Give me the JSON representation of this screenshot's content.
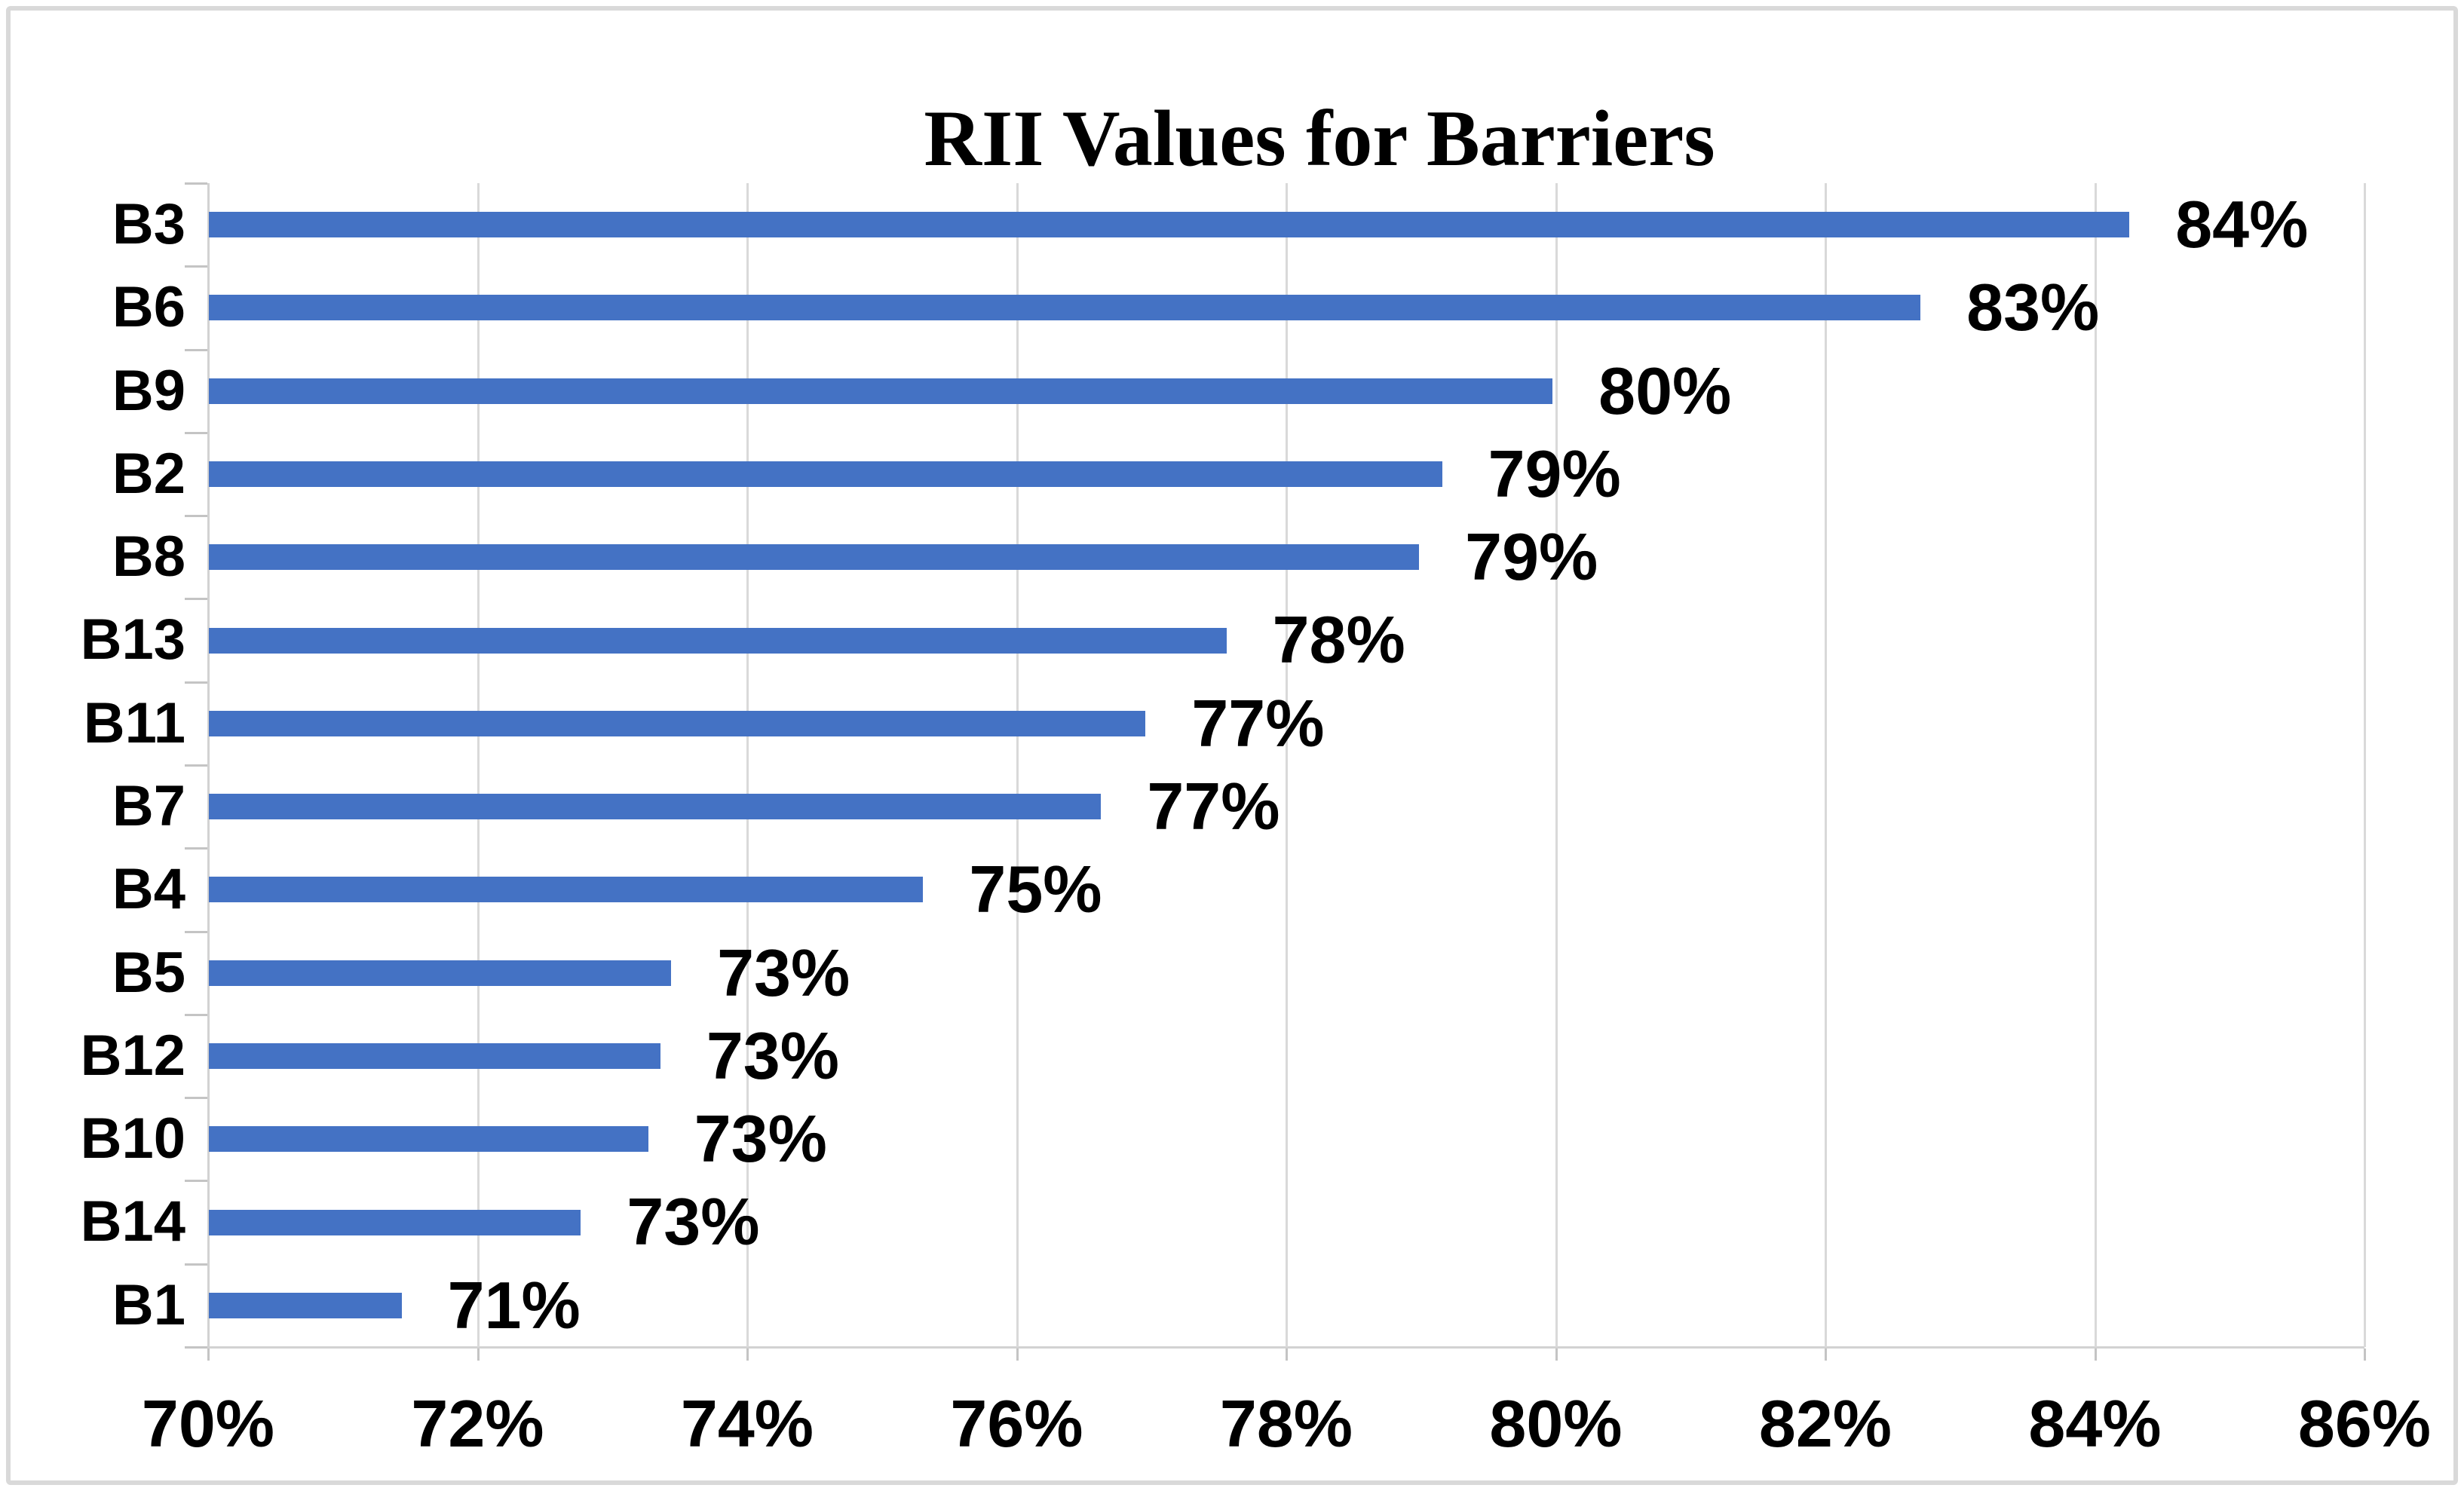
{
  "chart_data": {
    "type": "bar",
    "orientation": "horizontal",
    "title": "RII Values for Barriers",
    "categories": [
      "B3",
      "B6",
      "B9",
      "B2",
      "B8",
      "B13",
      "B11",
      "B7",
      "B4",
      "B5",
      "B12",
      "B10",
      "B14",
      "B1"
    ],
    "series": [
      {
        "name": "RII",
        "values_pct": [
          84.25,
          82.7,
          79.97,
          79.15,
          78.98,
          77.55,
          76.95,
          76.62,
          75.3,
          73.43,
          73.35,
          73.26,
          72.76,
          71.43
        ],
        "data_labels": [
          "84%",
          "83%",
          "80%",
          "79%",
          "79%",
          "78%",
          "77%",
          "77%",
          "75%",
          "73%",
          "73%",
          "73%",
          "73%",
          "71%"
        ]
      }
    ],
    "x_axis": {
      "min": 70,
      "max": 86,
      "tick_step": 2,
      "tick_labels": [
        "70%",
        "72%",
        "74%",
        "76%",
        "78%",
        "80%",
        "82%",
        "84%",
        "86%"
      ]
    },
    "y_axis": {
      "label": "",
      "categories_order": "descending by value"
    },
    "grid": true,
    "legend": false,
    "colors": {
      "bar": "#4472c4",
      "gridline": "#d9d9d9",
      "axis_line": "#d2d2d2",
      "tick_mark": "#c4c4c4",
      "text": "#000000",
      "frame_border": "#d9d9d9",
      "background": "#ffffff"
    }
  }
}
